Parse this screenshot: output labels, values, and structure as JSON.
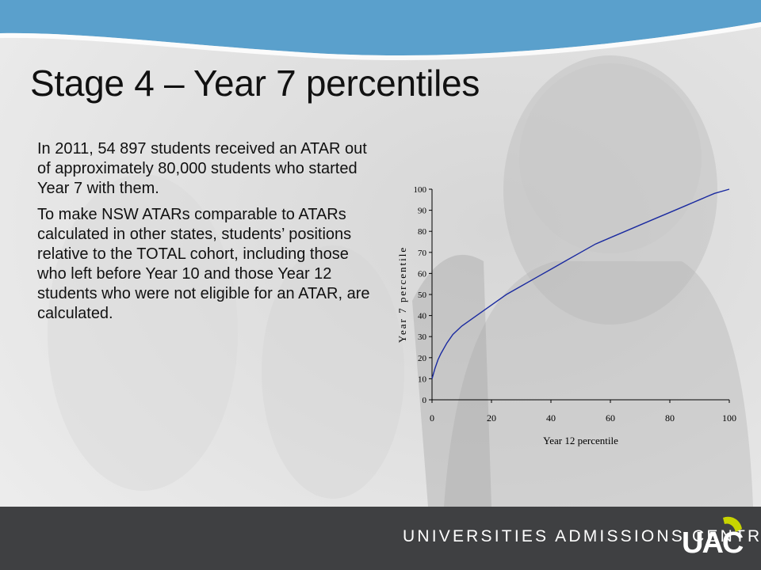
{
  "slide": {
    "title": "Stage 4 – Year 7 percentiles",
    "paragraphs": [
      "In 2011, 54 897 students received an ATAR out of approximately 80,000 students who started Year 7 with them.",
      "To make NSW ATARs comparable to ATARs calculated in other states, students’ positions relative to the TOTAL cohort, including those who left before Year 10 and those Year 12 students who were not eligible for an ATAR, are calculated."
    ]
  },
  "footer": {
    "org_name": "UNIVERSITIES ADMISSIONS CENTRE",
    "logo_text": "UAC"
  },
  "colors": {
    "banner": "#5aa0cc",
    "footer": "#3f4042",
    "logo_accent": "#c8d400",
    "line": "#1a2aa0"
  },
  "chart_data": {
    "type": "line",
    "title": "",
    "xlabel": "Year 12 percentile",
    "ylabel": "Year 7 percentile",
    "xlim": [
      0,
      100
    ],
    "ylim": [
      0,
      100
    ],
    "x_ticks": [
      "0",
      "20",
      "40",
      "60",
      "80",
      "100"
    ],
    "y_ticks": [
      "0",
      "10",
      "20",
      "30",
      "40",
      "50",
      "60",
      "70",
      "80",
      "90",
      "100"
    ],
    "grid": false,
    "series": [
      {
        "x": [
          0,
          1,
          2,
          3,
          5,
          7,
          10,
          15,
          20,
          25,
          30,
          35,
          40,
          45,
          50,
          55,
          60,
          65,
          70,
          75,
          80,
          85,
          90,
          95,
          100
        ],
        "y": [
          10,
          15,
          19,
          22,
          27,
          31,
          35,
          40,
          45,
          50,
          54,
          58,
          62,
          66,
          70,
          74,
          77,
          80,
          83,
          86,
          89,
          92,
          95,
          98,
          100
        ]
      }
    ]
  }
}
